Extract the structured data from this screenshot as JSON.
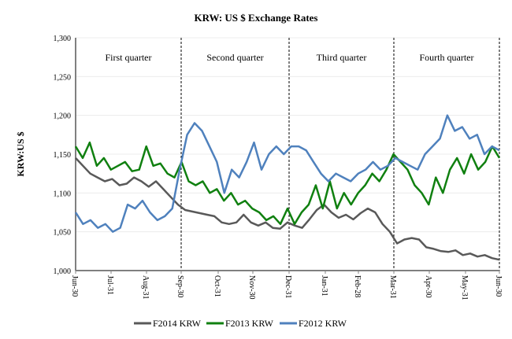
{
  "chart_data": {
    "type": "line",
    "title": "KRW: US $ Exchange Rates",
    "xlabel": "",
    "ylabel": "KRW:US $",
    "ylim": [
      1000,
      1300
    ],
    "yticks": [
      "1,000",
      "1,050",
      "1,100",
      "1,150",
      "1,200",
      "1,250",
      "1,300"
    ],
    "xticks": [
      "Jun-30",
      "Jul-31",
      "Aug-31",
      "Sep-30",
      "Oct-31",
      "Nov-30",
      "Dec-31",
      "Jan-31",
      "Feb-28",
      "Mar-31",
      "Apr-30",
      "May-31",
      "Jun-30"
    ],
    "grid": true,
    "legend_placement": "bottom",
    "quarters": [
      {
        "label": "First quarter",
        "start": "Jun-30",
        "end": "Sep-30"
      },
      {
        "label": "Second quarter",
        "start": "Sep-30",
        "end": "Dec-31"
      },
      {
        "label": "Third quarter",
        "start": "Dec-31",
        "end": "Mar-31"
      },
      {
        "label": "Fourth quarter",
        "start": "Mar-31",
        "end": "Jun-30"
      }
    ],
    "series": [
      {
        "name": "F2014 KRW",
        "color": "#595959",
        "values": [
          1145,
          1135,
          1125,
          1120,
          1115,
          1118,
          1110,
          1112,
          1120,
          1115,
          1108,
          1115,
          1105,
          1095,
          1085,
          1078,
          1076,
          1074,
          1072,
          1070,
          1062,
          1060,
          1062,
          1072,
          1062,
          1058,
          1062,
          1055,
          1054,
          1062,
          1058,
          1055,
          1066,
          1078,
          1085,
          1075,
          1068,
          1072,
          1066,
          1074,
          1080,
          1075,
          1060,
          1050,
          1035,
          1040,
          1042,
          1040,
          1030,
          1028,
          1025,
          1024,
          1026,
          1020,
          1022,
          1018,
          1020,
          1016,
          1014
        ]
      },
      {
        "name": "F2013 KRW",
        "color": "#108010",
        "values": [
          1160,
          1145,
          1165,
          1135,
          1145,
          1130,
          1135,
          1140,
          1128,
          1130,
          1160,
          1135,
          1138,
          1125,
          1120,
          1140,
          1115,
          1110,
          1115,
          1100,
          1105,
          1090,
          1100,
          1085,
          1090,
          1080,
          1075,
          1065,
          1070,
          1060,
          1080,
          1060,
          1075,
          1085,
          1110,
          1080,
          1115,
          1080,
          1100,
          1085,
          1100,
          1110,
          1125,
          1115,
          1130,
          1150,
          1140,
          1130,
          1110,
          1100,
          1085,
          1120,
          1100,
          1130,
          1145,
          1125,
          1150,
          1130,
          1140,
          1160,
          1145
        ]
      },
      {
        "name": "F2012 KRW",
        "color": "#4f81bd",
        "values": [
          1075,
          1060,
          1065,
          1055,
          1060,
          1050,
          1055,
          1085,
          1080,
          1090,
          1075,
          1065,
          1070,
          1080,
          1130,
          1175,
          1190,
          1180,
          1160,
          1140,
          1100,
          1130,
          1120,
          1140,
          1165,
          1130,
          1150,
          1160,
          1150,
          1160,
          1160,
          1155,
          1140,
          1125,
          1115,
          1125,
          1120,
          1115,
          1125,
          1130,
          1140,
          1130,
          1135,
          1145,
          1140,
          1135,
          1130,
          1150,
          1160,
          1170,
          1200,
          1180,
          1185,
          1170,
          1175,
          1150,
          1160,
          1155
        ]
      }
    ]
  }
}
